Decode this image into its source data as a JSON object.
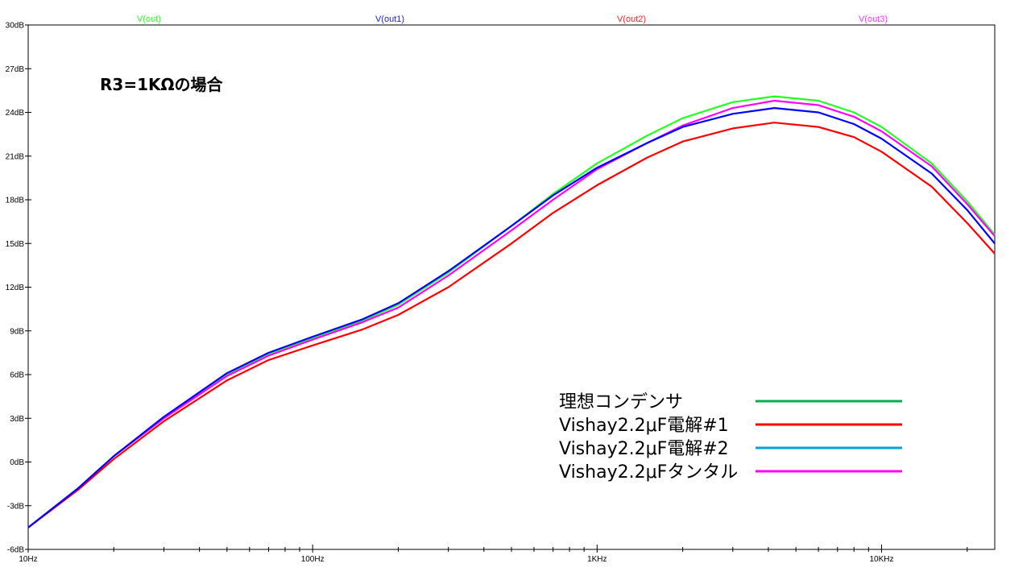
{
  "chart_data": {
    "type": "line",
    "x_scale": "log",
    "xlim": [
      10,
      25000
    ],
    "ylim": [
      -6,
      30
    ],
    "x_ticks": [
      {
        "value": 10,
        "label": "10Hz"
      },
      {
        "value": 100,
        "label": "100Hz"
      },
      {
        "value": 1000,
        "label": "1KHz"
      },
      {
        "value": 10000,
        "label": "10KHz"
      }
    ],
    "y_ticks": [
      {
        "value": 30,
        "label": "30dB"
      },
      {
        "value": 27,
        "label": "27dB"
      },
      {
        "value": 24,
        "label": "24dB"
      },
      {
        "value": 21,
        "label": "21dB"
      },
      {
        "value": 18,
        "label": "18dB"
      },
      {
        "value": 15,
        "label": "15dB"
      },
      {
        "value": 12,
        "label": "12dB"
      },
      {
        "value": 9,
        "label": "9dB"
      },
      {
        "value": 6,
        "label": "6dB"
      },
      {
        "value": 3,
        "label": "3dB"
      },
      {
        "value": 0,
        "label": "0dB"
      },
      {
        "value": -3,
        "label": "-3dB"
      },
      {
        "value": -6,
        "label": "-6dB"
      }
    ],
    "annotation": "R3=1KΩの場合",
    "trace_titles": [
      {
        "label": "V(out)",
        "color": "#22ff22"
      },
      {
        "label": "V(out1)",
        "color": "#2222ff"
      },
      {
        "label": "V(out2)",
        "color": "#ff2222"
      },
      {
        "label": "V(out3)",
        "color": "#ff33ff"
      }
    ],
    "legend": [
      {
        "label": "理想コンデンサ",
        "color": "#00b050"
      },
      {
        "label": "Vishay2.2μF電解#1",
        "color": "#ff0000"
      },
      {
        "label": "Vishay2.2μF電解#2",
        "color": "#00a0e0"
      },
      {
        "label": "Vishay2.2μFタンタル",
        "color": "#ff00ff"
      }
    ],
    "series": [
      {
        "color": "#22ff22",
        "x": [
          10,
          15,
          20,
          30,
          50,
          70,
          100,
          150,
          200,
          300,
          500,
          700,
          1000,
          1500,
          2000,
          3000,
          4200,
          6000,
          8000,
          10000,
          15000,
          20000,
          25000
        ],
        "y": [
          -4.5,
          -1.8,
          0.4,
          3.0,
          6.0,
          7.4,
          8.5,
          9.7,
          10.8,
          13.0,
          16.2,
          18.4,
          20.5,
          22.4,
          23.6,
          24.7,
          25.1,
          24.8,
          24.0,
          23.0,
          20.5,
          17.9,
          15.6
        ]
      },
      {
        "color": "#0000ff",
        "x": [
          10,
          15,
          20,
          30,
          50,
          70,
          100,
          150,
          200,
          300,
          500,
          700,
          1000,
          1500,
          2000,
          3000,
          4200,
          6000,
          8000,
          10000,
          15000,
          20000,
          25000
        ],
        "y": [
          -4.5,
          -1.8,
          0.4,
          3.1,
          6.1,
          7.5,
          8.6,
          9.8,
          10.9,
          13.1,
          16.2,
          18.3,
          20.2,
          21.9,
          23.0,
          23.9,
          24.3,
          24.0,
          23.2,
          22.2,
          19.8,
          17.3,
          15.0
        ]
      },
      {
        "color": "#ff0000",
        "x": [
          10,
          15,
          20,
          30,
          50,
          70,
          100,
          150,
          200,
          300,
          500,
          700,
          1000,
          1500,
          2000,
          3000,
          4200,
          6000,
          8000,
          10000,
          15000,
          20000,
          25000
        ],
        "y": [
          -4.5,
          -1.9,
          0.2,
          2.8,
          5.6,
          7.0,
          8.0,
          9.1,
          10.1,
          12.0,
          15.0,
          17.1,
          19.0,
          20.9,
          22.0,
          22.9,
          23.3,
          23.0,
          22.3,
          21.3,
          18.9,
          16.4,
          14.3
        ]
      },
      {
        "color": "#ff00ff",
        "x": [
          10,
          15,
          20,
          30,
          50,
          70,
          100,
          150,
          200,
          300,
          500,
          700,
          1000,
          1500,
          2000,
          3000,
          4200,
          6000,
          8000,
          10000,
          15000,
          20000,
          25000
        ],
        "y": [
          -4.5,
          -1.8,
          0.4,
          3.0,
          5.9,
          7.3,
          8.4,
          9.6,
          10.6,
          12.8,
          15.9,
          18.0,
          20.1,
          21.9,
          23.1,
          24.3,
          24.8,
          24.5,
          23.7,
          22.7,
          20.3,
          17.7,
          15.5
        ]
      }
    ]
  }
}
